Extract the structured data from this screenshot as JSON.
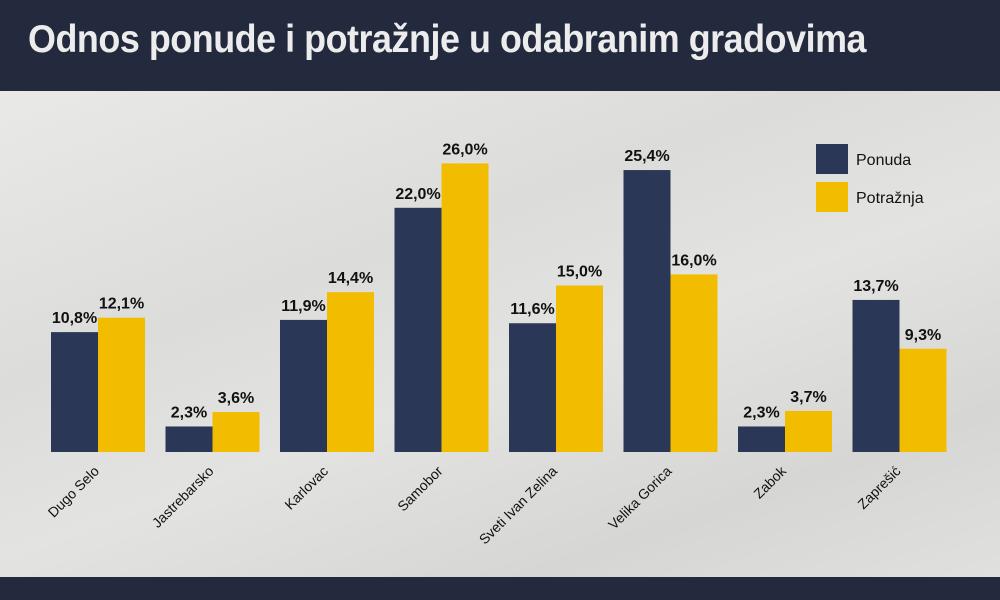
{
  "title": "Odnos ponude i potražnje u odabranim gradovima",
  "colors": {
    "ponuda": "#2a3756",
    "potraznja": "#f2bd00",
    "background": "#232a3e"
  },
  "chart_data": {
    "type": "bar",
    "title": "Odnos ponude i potražnje u odabranim gradovima",
    "xlabel": "",
    "ylabel": "",
    "ylim": [
      0,
      26
    ],
    "grid": false,
    "legend_position": "top-right",
    "categories": [
      "Dugo Selo",
      "Jastrebarsko",
      "Karlovac",
      "Samobor",
      "Sveti Ivan Zelina",
      "Velika Gorica",
      "Zabok",
      "Zaprešić"
    ],
    "series": [
      {
        "name": "Ponuda",
        "values": [
          10.8,
          2.3,
          11.9,
          22.0,
          11.6,
          25.4,
          2.3,
          13.7
        ],
        "labels": [
          "10,8%",
          "2,3%",
          "11,9%",
          "22,0%",
          "11,6%",
          "25,4%",
          "2,3%",
          "13,7%"
        ]
      },
      {
        "name": "Potražnja",
        "values": [
          12.1,
          3.6,
          14.4,
          26.0,
          15.0,
          16.0,
          3.7,
          9.3
        ],
        "labels": [
          "12,1%",
          "3,6%",
          "14,4%",
          "26,0%",
          "15,0%",
          "16,0%",
          "3,7%",
          "9,3%"
        ]
      }
    ]
  }
}
